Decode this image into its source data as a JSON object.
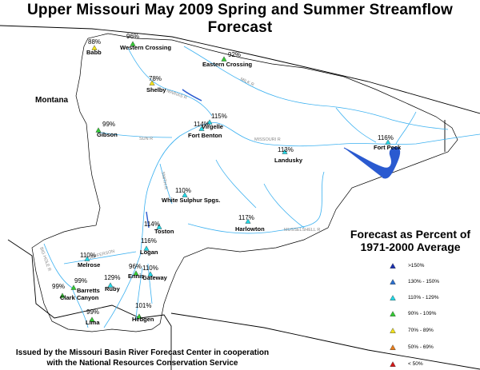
{
  "title": "Upper Missouri May 2009 Spring and Summer Streamflow Forecast",
  "state_label": "Montana",
  "legend": {
    "title_line1": "Forecast as Percent of",
    "title_line2": "1971-2000 Average",
    "items": [
      {
        "label": ">150%",
        "color": "#1a2fb0"
      },
      {
        "label": "130% - 150%",
        "color": "#2a6fd0"
      },
      {
        "label": "110% - 129%",
        "color": "#22d8e6"
      },
      {
        "label": "90% - 109%",
        "color": "#33cc33"
      },
      {
        "label": "70% - 89%",
        "color": "#f2e21a"
      },
      {
        "label": "50% - 69%",
        "color": "#e87d1a"
      },
      {
        "label": "< 50%",
        "color": "#d41818"
      }
    ]
  },
  "footer": {
    "line1": "Issued by the Missouri Basin River Forecast Center in cooperation",
    "line2": "with the National Resources Conservation Service"
  },
  "rivers": [
    {
      "label": "MISSOURI R"
    },
    {
      "label": "SUN R"
    },
    {
      "label": "MILK R"
    },
    {
      "label": "MUSSELSHELL R"
    },
    {
      "label": "MARIAS R"
    },
    {
      "label": "JEFFERSON"
    },
    {
      "label": "BIG HOLE R"
    },
    {
      "label": "SMITH R"
    }
  ],
  "sites": [
    {
      "name": "Babb",
      "pct": "88%",
      "category": 4
    },
    {
      "name": "Western Crossing",
      "pct": "96%",
      "category": 3
    },
    {
      "name": "Eastern Crossing",
      "pct": "92%",
      "category": 3
    },
    {
      "name": "Shelby",
      "pct": "78%",
      "category": 4
    },
    {
      "name": "Virgelle",
      "pct": "115%",
      "category": 2
    },
    {
      "name": "Fort Benton",
      "pct": "114%",
      "category": 2
    },
    {
      "name": "Gibson",
      "pct": "99%",
      "category": 3
    },
    {
      "name": "Landusky",
      "pct": "113%",
      "category": 2
    },
    {
      "name": "Fort Peck",
      "pct": "116%",
      "category": 2
    },
    {
      "name": "White Sulphur Spgs.",
      "pct": "110%",
      "category": 2
    },
    {
      "name": "Harlowton",
      "pct": "117%",
      "category": 2
    },
    {
      "name": "Toston",
      "pct": "114%",
      "category": 2
    },
    {
      "name": "Logan",
      "pct": "116%",
      "category": 2
    },
    {
      "name": "Melrose",
      "pct": "110%",
      "category": 2
    },
    {
      "name": "Ennis",
      "pct": "96%",
      "category": 3
    },
    {
      "name": "Gateway",
      "pct": "110%",
      "category": 2
    },
    {
      "name": "Barretts",
      "pct": "99%",
      "category": 3
    },
    {
      "name": "Clark Canyon",
      "pct": "99%",
      "category": 3
    },
    {
      "name": "Ruby",
      "pct": "129%",
      "category": 2
    },
    {
      "name": "Lima",
      "pct": "99%",
      "category": 3
    },
    {
      "name": "Hebgen",
      "pct": "101%",
      "category": 3
    }
  ]
}
